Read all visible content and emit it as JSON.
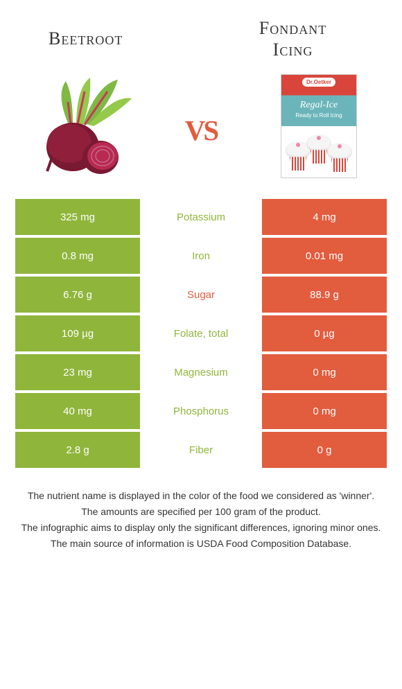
{
  "header": {
    "left_title": "Beetroot",
    "right_title": "Fondant Icing",
    "vs": "vs"
  },
  "fondant_package": {
    "brand": "Dr.Oetker",
    "title": "Regal-Ice",
    "subtitle": "Ready to Roll Icing"
  },
  "colors": {
    "left_bg": "#8fb53b",
    "right_bg": "#e25c3e",
    "mid_left_text": "#8fb53b",
    "mid_right_text": "#e25c3e",
    "cell_text": "#ffffff"
  },
  "rows": [
    {
      "left": "325 mg",
      "mid": "Potassium",
      "right": "4 mg",
      "winner": "left"
    },
    {
      "left": "0.8 mg",
      "mid": "Iron",
      "right": "0.01 mg",
      "winner": "left"
    },
    {
      "left": "6.76 g",
      "mid": "Sugar",
      "right": "88.9 g",
      "winner": "right"
    },
    {
      "left": "109 µg",
      "mid": "Folate, total",
      "right": "0 µg",
      "winner": "left"
    },
    {
      "left": "23 mg",
      "mid": "Magnesium",
      "right": "0 mg",
      "winner": "left"
    },
    {
      "left": "40 mg",
      "mid": "Phosphorus",
      "right": "0 mg",
      "winner": "left"
    },
    {
      "left": "2.8 g",
      "mid": "Fiber",
      "right": "0 g",
      "winner": "left"
    }
  ],
  "footer": {
    "line1": "The nutrient name is displayed in the color of the food we considered as 'winner'.",
    "line2": "The amounts are specified per 100 gram of the product.",
    "line3": "The infographic aims to display only the significant differences, ignoring minor ones.",
    "line4": "The main source of information is USDA Food Composition Database."
  }
}
